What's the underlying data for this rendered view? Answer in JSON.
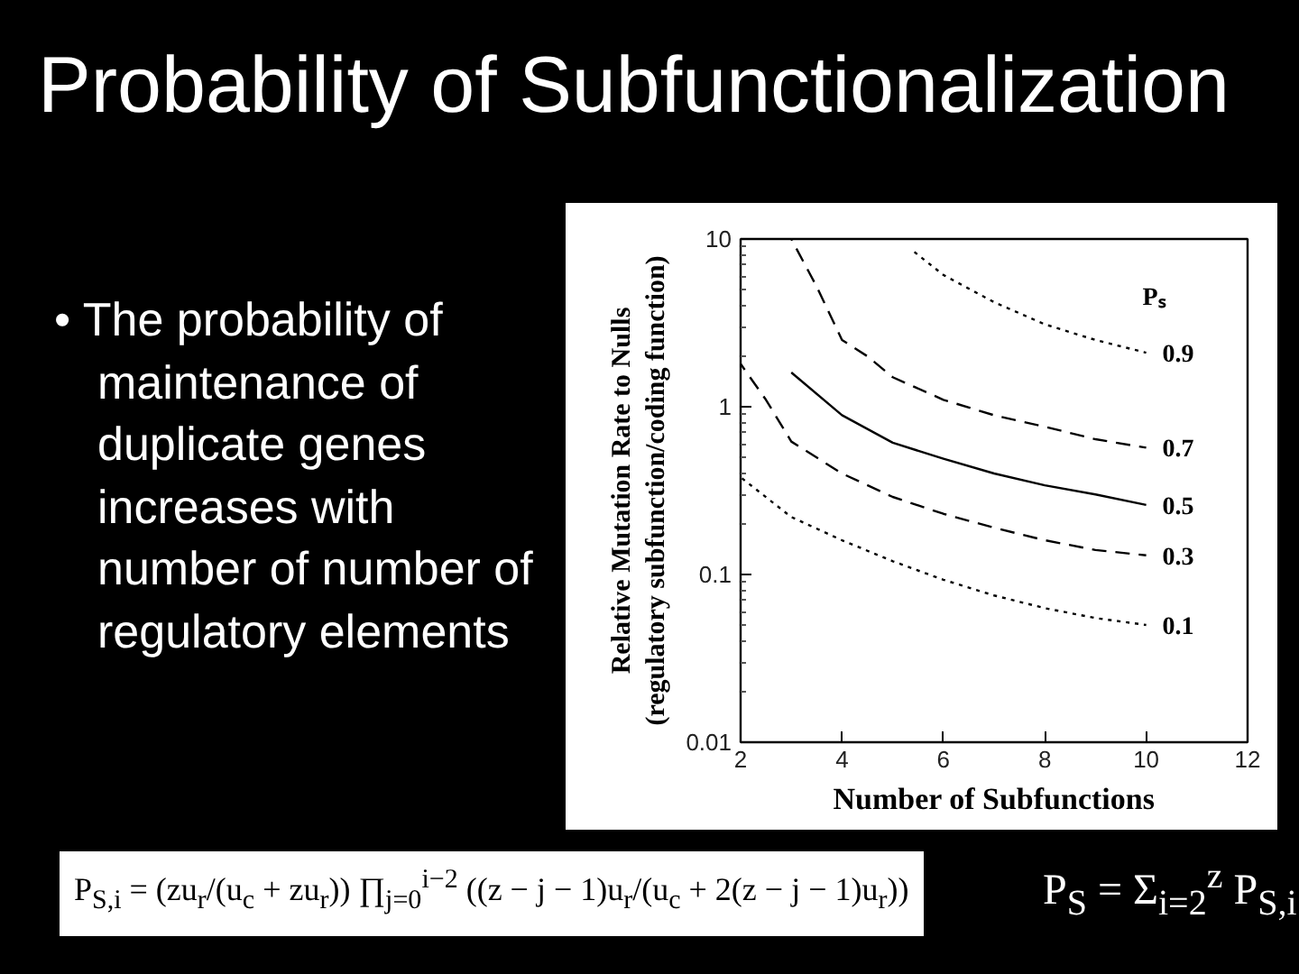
{
  "chart_data": {
    "type": "line",
    "title": "Probability of Subfunctionalization",
    "xlabel": "Number of Subfunctions",
    "ylabel": "Relative Mutation Rate to Nulls\n(regulatory subfunction/coding function)",
    "legend_title": "Pₛ",
    "annotations": [
      "• The probability of maintenance of duplicate genes increases with number of number of regulatory elements",
      "P$_{S,i}$ = (zu$_{r}$/(u$_{c}$ + zu$_{r}$)) ∏$_{j=0}$$^{i−2}$ ((z − j − 1)u$_{r}$/(u$_{c}$ + 2(z − j − 1)u$_{r}$))",
      "P$_{S}$ = Σ$_{i=2}$$^{z}$ P$_{S,i}$"
    ],
    "log": "y",
    "grid": false,
    "xlim": [
      2,
      12
    ],
    "xticks": [
      2,
      4,
      6,
      8,
      10,
      12
    ],
    "ylim": [
      0.01,
      10
    ],
    "yticks": [
      0.01,
      {
        "value": 0.02,
        "label": null
      },
      {
        "value": 0.03,
        "label": null
      },
      {
        "value": 0.04,
        "label": null
      },
      {
        "value": 0.05,
        "label": null
      },
      {
        "value": 0.06,
        "label": null
      },
      {
        "value": 0.07,
        "label": null
      },
      {
        "value": 0.08,
        "label": null
      },
      {
        "value": 0.09,
        "label": null
      },
      0.1,
      {
        "value": 0.2,
        "label": null
      },
      {
        "value": 0.3,
        "label": null
      },
      {
        "value": 0.4,
        "label": null
      },
      {
        "value": 0.5,
        "label": null
      },
      {
        "value": 0.6,
        "label": null
      },
      {
        "value": 0.7,
        "label": null
      },
      {
        "value": 0.8,
        "label": null
      },
      {
        "value": 0.9,
        "label": null
      },
      1,
      {
        "value": 2,
        "label": null
      },
      {
        "value": 3,
        "label": null
      },
      {
        "value": 4,
        "label": null
      },
      {
        "value": 5,
        "label": null
      },
      {
        "value": 6,
        "label": null
      },
      {
        "value": 7,
        "label": null
      },
      {
        "value": 8,
        "label": null
      },
      {
        "value": 9,
        "label": null
      },
      10
    ],
    "series": [
      {
        "name": "0.9",
        "color": "#000000",
        "line_style": "dotted",
        "x": [
          5.4,
          6,
          7,
          8,
          9,
          10
        ],
        "values": [
          8.5,
          6.1,
          4.2,
          3.1,
          2.5,
          2.1
        ]
      },
      {
        "name": "0.7",
        "color": "#000000",
        "line_style": "dashed",
        "x": [
          3,
          3.5,
          4,
          4.5,
          5,
          6,
          7,
          8,
          9,
          10
        ],
        "values": [
          10,
          5.2,
          2.5,
          2.0,
          1.5,
          1.1,
          0.89,
          0.76,
          0.64,
          0.57
        ]
      },
      {
        "name": "0.5",
        "color": "#000000",
        "line_style": "solid",
        "x": [
          3,
          4,
          5,
          6,
          7,
          8,
          9,
          10
        ],
        "values": [
          1.6,
          0.89,
          0.61,
          0.49,
          0.4,
          0.34,
          0.3,
          0.26
        ]
      },
      {
        "name": "0.3",
        "color": "#000000",
        "line_style": "dashed",
        "x": [
          2,
          2.5,
          3,
          4,
          5,
          6,
          7,
          8,
          9,
          10
        ],
        "values": [
          1.8,
          1.1,
          0.62,
          0.4,
          0.29,
          0.23,
          0.19,
          0.16,
          0.14,
          0.13
        ]
      },
      {
        "name": "0.1",
        "color": "#000000",
        "line_style": "dotted",
        "x": [
          2,
          3,
          4,
          5,
          6,
          7,
          8,
          9,
          10
        ],
        "values": [
          0.38,
          0.22,
          0.16,
          0.12,
          0.093,
          0.075,
          0.063,
          0.055,
          0.05
        ]
      }
    ]
  }
}
